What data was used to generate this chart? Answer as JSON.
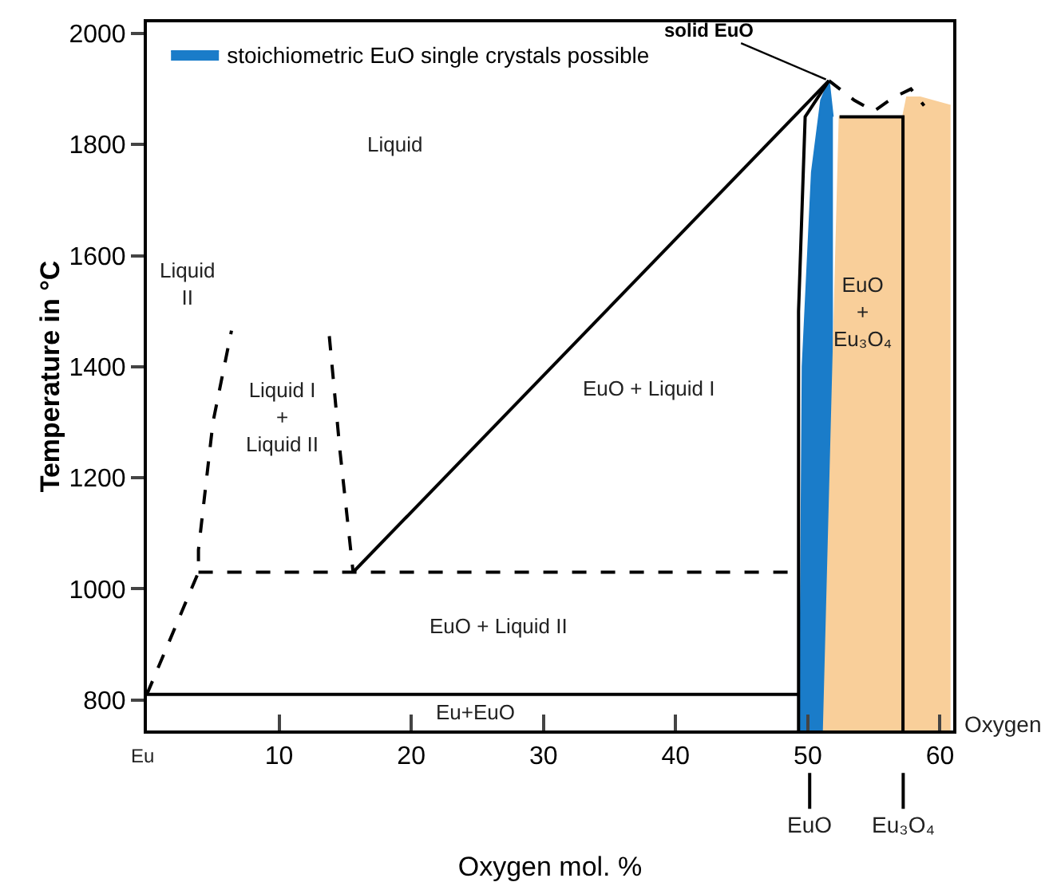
{
  "chart_data": {
    "type": "line",
    "xlabel": "Oxygen mol. %",
    "ylabel": "Temperature in °C",
    "xlim": [
      0,
      61
    ],
    "ylim": [
      745,
      2020
    ],
    "xticks": [
      10,
      20,
      30,
      40,
      50,
      60
    ],
    "yticks": [
      800,
      1000,
      1200,
      1400,
      1600,
      1800,
      2000
    ],
    "grid": false,
    "legend": "top left",
    "series": [
      {
        "type": "area",
        "name": "stoichiometric EuO single crystals possible",
        "color": "#1a7cc9",
        "x": [
          49.4,
          49.6,
          50.3,
          51.0,
          51.6,
          51.9
        ],
        "values": [
          745,
          1400,
          1750,
          1880,
          1915,
          1850
        ]
      },
      {
        "type": "area",
        "color": "#f9cf9a",
        "x": [
          51.2,
          52.4,
          57.2,
          57.5,
          58.5,
          60.8
        ],
        "values": [
          745,
          1850,
          1850,
          1885,
          1885,
          1870
        ]
      },
      {
        "color": "#000000",
        "line_style": "solid",
        "x": [
          0,
          49.3
        ],
        "values": [
          810,
          810
        ]
      },
      {
        "color": "#000000",
        "line_style": "dashed",
        "x": [
          3.9,
          49.3
        ],
        "values": [
          1030,
          1030
        ]
      },
      {
        "color": "#000000",
        "line_style": "solid",
        "x": [
          15.6,
          51.6
        ],
        "values": [
          1030,
          1915
        ]
      },
      {
        "color": "#000000",
        "line_style": "dashed",
        "x": [
          0,
          3.9,
          3.9,
          5.0,
          6.4
        ],
        "values": [
          810,
          1030,
          1070,
          1300,
          1465
        ]
      },
      {
        "color": "#000000",
        "line_style": "dashed",
        "x": [
          13.8,
          14.6,
          15.6
        ],
        "values": [
          1455,
          1250,
          1030
        ]
      },
      {
        "color": "#000000",
        "line_style": "solid",
        "x": [
          49.3,
          49.3,
          49.8,
          51.6
        ],
        "values": [
          745,
          1500,
          1850,
          1915
        ]
      },
      {
        "color": "#000000",
        "line_style": "solid",
        "x": [
          52.4,
          57.2,
          57.2
        ],
        "values": [
          1850,
          1850,
          745
        ]
      },
      {
        "color": "#000000",
        "line_style": "dashed",
        "x": [
          51.6,
          53.5,
          55,
          56.5,
          57.8,
          58.8
        ],
        "values": [
          1915,
          1880,
          1860,
          1885,
          1900,
          1870
        ]
      }
    ],
    "annotations": [
      "Liquid",
      "Liquid\nII",
      "Liquid I\n+\nLiquid II",
      "EuO + Liquid I",
      "EuO + Liquid II",
      "Eu+EuO",
      "EuO\n+\nEu₃O₄",
      {
        "text": "solid EuO",
        "x": 51.6,
        "y": 1915
      },
      "Eu",
      "Oxygen",
      "EuO",
      "Eu₃O₄"
    ]
  }
}
